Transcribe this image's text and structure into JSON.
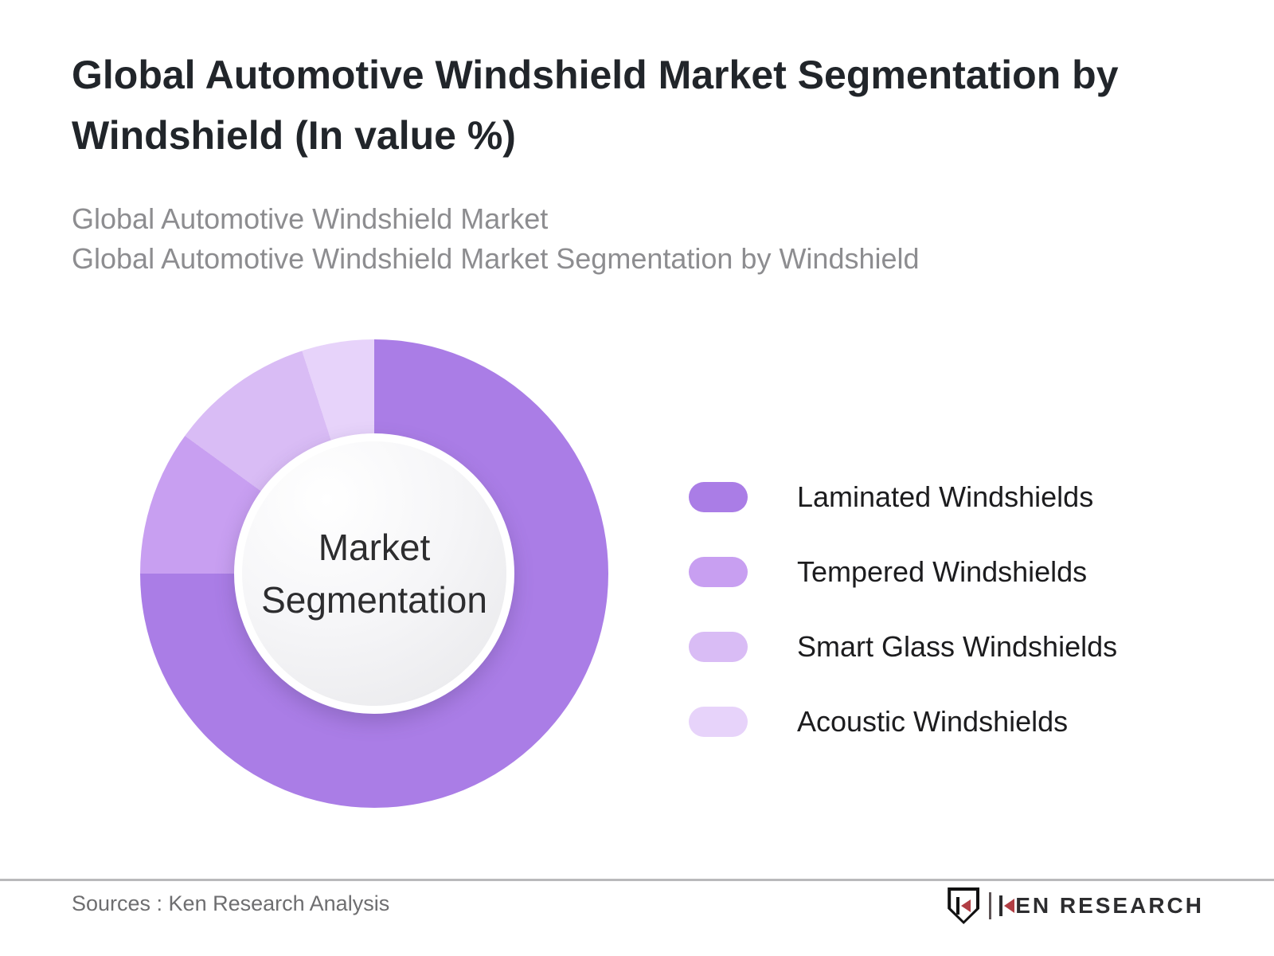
{
  "page": {
    "title_lines": [
      "Global Automotive Windshield Market Segmentation by",
      "Windshield (In value %)"
    ],
    "subtitle_lines": [
      "Global Automotive Windshield Market",
      "Global Automotive Windshield Market Segmentation by Windshield"
    ]
  },
  "chart_data": {
    "type": "pie",
    "variant": "donut",
    "title": "Global Automotive Windshield Market Segmentation by Windshield (In value %)",
    "center_label_lines": [
      "Market",
      "Segmentation"
    ],
    "categories": [
      "Laminated Windshields",
      "Tempered Windshields",
      "Smart Glass Windshields",
      "Acoustic Windshields"
    ],
    "values": [
      75,
      10,
      10,
      5
    ],
    "values_note": "slices are unlabeled in the image; percentages estimated from arc angles (boundaries at 270deg, 306deg, 342deg from 12 o'clock)",
    "unit": "% of market value",
    "colors": [
      "#aa7de6",
      "#c89ff1",
      "#d9bcf5",
      "#e7d3fa"
    ],
    "start_angle_deg": 0,
    "direction": "clockwise",
    "donut_hole_ratio": 0.6,
    "legend_position": "right",
    "data_labels": false
  },
  "footer": {
    "sources": "Sources : Ken Research Analysis",
    "brand": {
      "monogram_letter": "K",
      "name": "KEN RESEARCH",
      "name_rest": "EN RESEARCH",
      "accent_color": "#b13e44"
    }
  }
}
